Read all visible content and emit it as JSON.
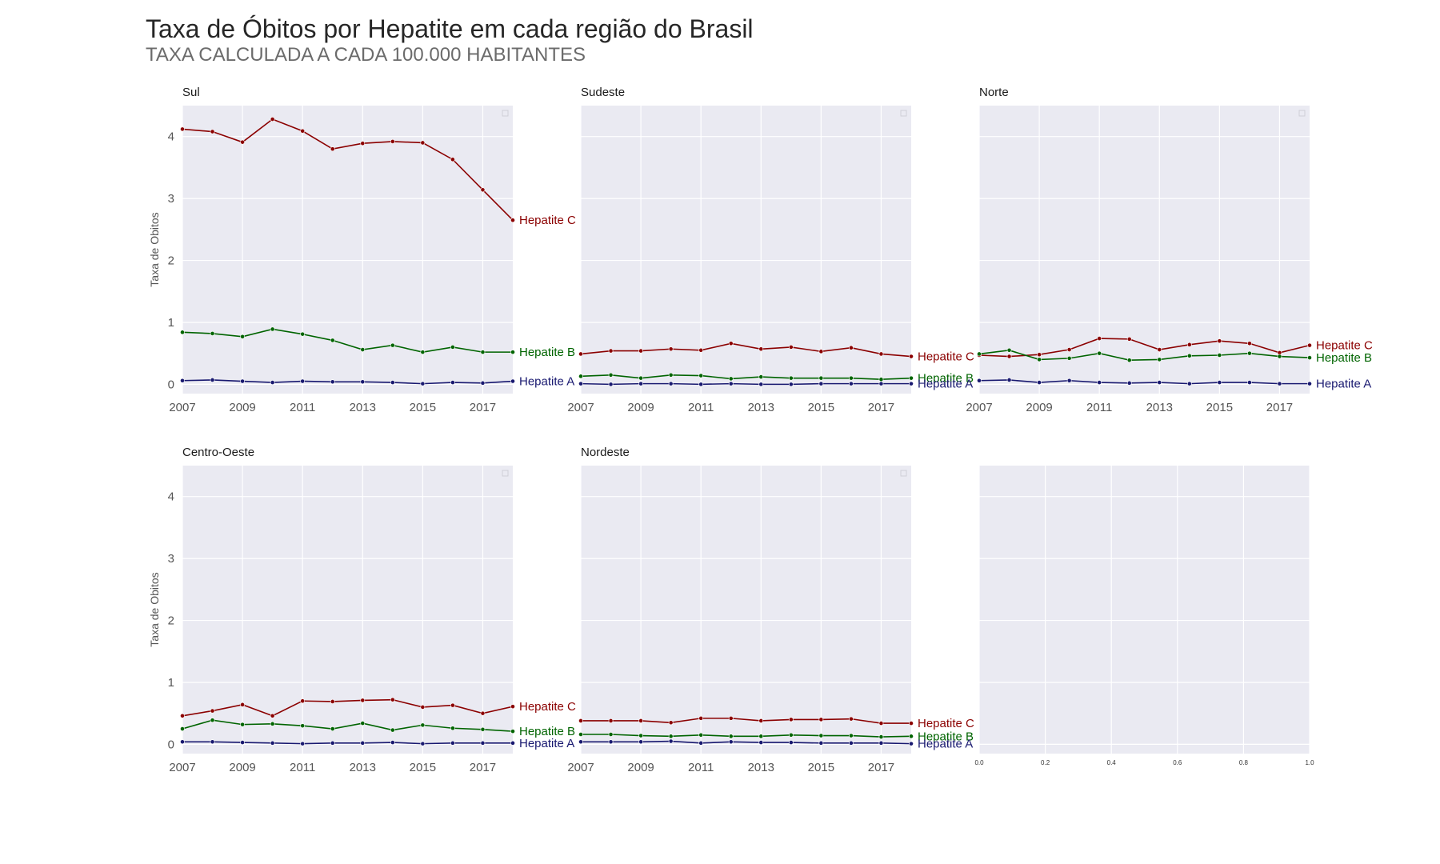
{
  "title": "Taxa de Óbitos por Hepatite em cada região do Brasil",
  "subtitle": "TAXA CALCULADA A CADA 100.000 HABITANTES",
  "colors": {
    "Hepatite A": "#191970",
    "Hepatite B": "#006400",
    "Hepatite C": "#8b0000",
    "panel_bg": "#eaeaf2",
    "grid": "#ffffff"
  },
  "chart_data": [
    {
      "type": "line",
      "title": "Sul",
      "ylabel": "Taxa de Obitos",
      "x": [
        2007,
        2008,
        2009,
        2010,
        2011,
        2012,
        2013,
        2014,
        2015,
        2016,
        2017,
        2018
      ],
      "xticks": [
        "2007",
        "2009",
        "2011",
        "2013",
        "2015",
        "2017"
      ],
      "yticks": [
        "0",
        "1",
        "2",
        "3",
        "4"
      ],
      "ylim": [
        -0.15,
        4.5
      ],
      "series": [
        {
          "name": "Hepatite C",
          "values": [
            4.12,
            4.08,
            3.91,
            4.28,
            4.09,
            3.8,
            3.89,
            3.92,
            3.9,
            3.63,
            3.14,
            2.65
          ]
        },
        {
          "name": "Hepatite B",
          "values": [
            0.84,
            0.82,
            0.77,
            0.89,
            0.81,
            0.71,
            0.56,
            0.63,
            0.52,
            0.6,
            0.52,
            0.52
          ]
        },
        {
          "name": "Hepatite A",
          "values": [
            0.06,
            0.07,
            0.05,
            0.03,
            0.05,
            0.04,
            0.04,
            0.03,
            0.01,
            0.03,
            0.02,
            0.05
          ]
        }
      ]
    },
    {
      "type": "line",
      "title": "Sudeste",
      "ylabel": "",
      "x": [
        2007,
        2008,
        2009,
        2010,
        2011,
        2012,
        2013,
        2014,
        2015,
        2016,
        2017,
        2018
      ],
      "xticks": [
        "2007",
        "2009",
        "2011",
        "2013",
        "2015",
        "2017"
      ],
      "yticks": [],
      "ylim": [
        -0.15,
        4.5
      ],
      "series": [
        {
          "name": "Hepatite C",
          "values": [
            0.49,
            0.54,
            0.54,
            0.57,
            0.55,
            0.66,
            0.57,
            0.6,
            0.53,
            0.59,
            0.49,
            0.45
          ]
        },
        {
          "name": "Hepatite B",
          "values": [
            0.13,
            0.15,
            0.1,
            0.15,
            0.14,
            0.09,
            0.12,
            0.1,
            0.1,
            0.1,
            0.08,
            0.1
          ]
        },
        {
          "name": "Hepatite A",
          "values": [
            0.01,
            0.0,
            0.01,
            0.01,
            0.0,
            0.01,
            0.0,
            0.0,
            0.01,
            0.01,
            0.01,
            0.01
          ]
        }
      ]
    },
    {
      "type": "line",
      "title": "Norte",
      "ylabel": "",
      "x": [
        2007,
        2008,
        2009,
        2010,
        2011,
        2012,
        2013,
        2014,
        2015,
        2016,
        2017,
        2018
      ],
      "xticks": [
        "2007",
        "2009",
        "2011",
        "2013",
        "2015",
        "2017"
      ],
      "yticks": [],
      "ylim": [
        -0.15,
        4.5
      ],
      "series": [
        {
          "name": "Hepatite C",
          "values": [
            0.47,
            0.45,
            0.48,
            0.56,
            0.74,
            0.73,
            0.56,
            0.64,
            0.7,
            0.66,
            0.51,
            0.63
          ]
        },
        {
          "name": "Hepatite B",
          "values": [
            0.49,
            0.55,
            0.4,
            0.42,
            0.5,
            0.39,
            0.4,
            0.46,
            0.47,
            0.5,
            0.45,
            0.43
          ]
        },
        {
          "name": "Hepatite A",
          "values": [
            0.06,
            0.07,
            0.03,
            0.06,
            0.03,
            0.02,
            0.03,
            0.01,
            0.03,
            0.03,
            0.01,
            0.01
          ]
        }
      ]
    },
    {
      "type": "line",
      "title": "Centro-Oeste",
      "ylabel": "Taxa de Obitos",
      "x": [
        2007,
        2008,
        2009,
        2010,
        2011,
        2012,
        2013,
        2014,
        2015,
        2016,
        2017,
        2018
      ],
      "xticks": [
        "2007",
        "2009",
        "2011",
        "2013",
        "2015",
        "2017"
      ],
      "yticks": [
        "0",
        "1",
        "2",
        "3",
        "4"
      ],
      "ylim": [
        -0.15,
        4.5
      ],
      "series": [
        {
          "name": "Hepatite C",
          "values": [
            0.46,
            0.54,
            0.64,
            0.46,
            0.7,
            0.69,
            0.71,
            0.72,
            0.6,
            0.63,
            0.5,
            0.61
          ]
        },
        {
          "name": "Hepatite B",
          "values": [
            0.25,
            0.39,
            0.32,
            0.33,
            0.3,
            0.25,
            0.34,
            0.23,
            0.31,
            0.26,
            0.24,
            0.21
          ]
        },
        {
          "name": "Hepatite A",
          "values": [
            0.04,
            0.04,
            0.03,
            0.02,
            0.01,
            0.02,
            0.02,
            0.03,
            0.01,
            0.02,
            0.02,
            0.02
          ]
        }
      ]
    },
    {
      "type": "line",
      "title": "Nordeste",
      "ylabel": "",
      "x": [
        2007,
        2008,
        2009,
        2010,
        2011,
        2012,
        2013,
        2014,
        2015,
        2016,
        2017,
        2018
      ],
      "xticks": [
        "2007",
        "2009",
        "2011",
        "2013",
        "2015",
        "2017"
      ],
      "yticks": [],
      "ylim": [
        -0.15,
        4.5
      ],
      "series": [
        {
          "name": "Hepatite C",
          "values": [
            0.38,
            0.38,
            0.38,
            0.35,
            0.42,
            0.42,
            0.38,
            0.4,
            0.4,
            0.41,
            0.34,
            0.34
          ]
        },
        {
          "name": "Hepatite B",
          "values": [
            0.16,
            0.16,
            0.14,
            0.13,
            0.15,
            0.13,
            0.13,
            0.15,
            0.14,
            0.14,
            0.12,
            0.13
          ]
        },
        {
          "name": "Hepatite A",
          "values": [
            0.04,
            0.04,
            0.04,
            0.05,
            0.02,
            0.04,
            0.03,
            0.03,
            0.02,
            0.02,
            0.02,
            0.01
          ]
        }
      ]
    },
    {
      "type": "line",
      "title": "",
      "ylabel": "",
      "xlim": [
        0,
        1
      ],
      "xticks": [
        "0.0",
        "0.2",
        "0.4",
        "0.6",
        "0.8",
        "1.0"
      ],
      "yticks": [],
      "ylim": [
        -0.15,
        4.5
      ],
      "series": []
    }
  ]
}
